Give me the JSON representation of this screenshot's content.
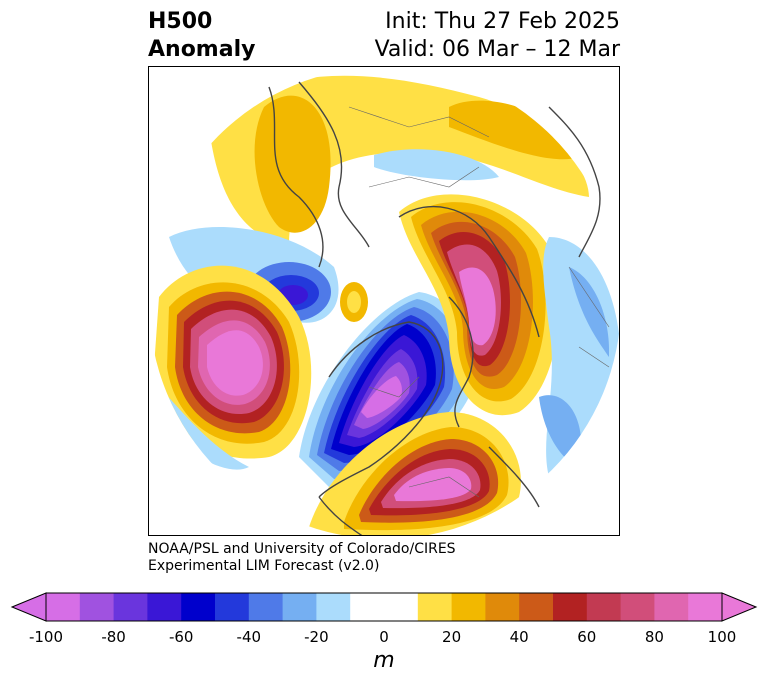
{
  "title": {
    "left_line1": "H500",
    "left_line2": "Anomaly",
    "init": "Init: Thu 27 Feb 2025",
    "valid": "Valid: 06 Mar – 12 Mar"
  },
  "credit": {
    "line1": "NOAA/PSL and University of Colorado/CIRES",
    "line2": "Experimental LIM Forecast (v2.0)"
  },
  "colorbar": {
    "unit": "m",
    "ticks": [
      "-100",
      "-80",
      "-60",
      "-40",
      "-20",
      "0",
      "20",
      "40",
      "60",
      "80",
      "100"
    ],
    "colors": [
      "#d66ee6",
      "#a052e0",
      "#6a35dd",
      "#3a17d6",
      "#0000cc",
      "#2339db",
      "#4f7ae8",
      "#75aff2",
      "#abdcfc",
      "#ffffff",
      "#ffffff",
      "#ffe045",
      "#f2b800",
      "#e08a0a",
      "#cc5a18",
      "#b22222",
      "#c23a52",
      "#d14e7a",
      "#e066b0",
      "#e978d8"
    ]
  },
  "map": {
    "projection": "north polar stereographic",
    "field": "500 hPa geopotential height anomaly"
  }
}
